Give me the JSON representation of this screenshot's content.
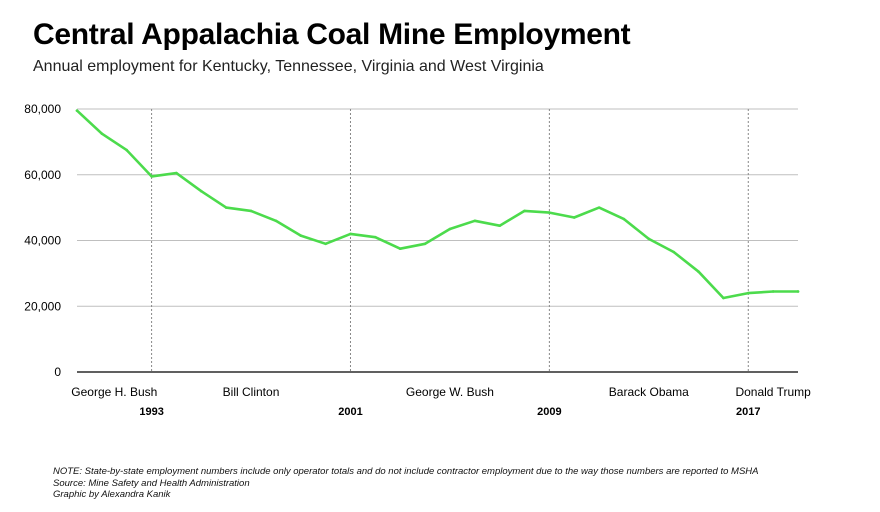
{
  "title": "Central Appalachia Coal Mine Employment",
  "subtitle": "Annual employment for Kentucky, Tennessee, Virginia and West Virginia",
  "colors": {
    "line": "#4cdb4c",
    "grid": "#bfbfbf",
    "axis": "#000000",
    "text": "#000000"
  },
  "chart_data": {
    "type": "line",
    "title": "Central Appalachia Coal Mine Employment",
    "subtitle": "Annual employment for Kentucky, Tennessee, Virginia and West Virginia",
    "xlim": [
      1990,
      2019
    ],
    "ylim": [
      0,
      80000
    ],
    "yticks": [
      0,
      20000,
      40000,
      60000,
      80000
    ],
    "ytick_labels": [
      "0",
      "20,000",
      "40,000",
      "60,000",
      "80,000"
    ],
    "grid": true,
    "series": [
      {
        "x": [
          1990,
          1991,
          1992,
          1993,
          1994,
          1995,
          1996,
          1997,
          1998,
          1999,
          2000,
          2001,
          2002,
          2003,
          2004,
          2005,
          2006,
          2007,
          2008,
          2009,
          2010,
          2011,
          2012,
          2013,
          2014,
          2015,
          2016,
          2017,
          2018,
          2019
        ],
        "y": [
          79500,
          72500,
          67500,
          59500,
          60500,
          55000,
          50000,
          49000,
          46000,
          41500,
          39000,
          42000,
          41000,
          37500,
          39000,
          43500,
          46000,
          44500,
          49000,
          48500,
          47000,
          50000,
          46500,
          40500,
          36500,
          30500,
          22500,
          24000,
          24500,
          24500
        ]
      }
    ],
    "presidencies": [
      {
        "name": "George H. Bush",
        "start": 1990,
        "end": 1993
      },
      {
        "name": "Bill Clinton",
        "start": 1993,
        "end": 2001
      },
      {
        "name": "George W. Bush",
        "start": 2001,
        "end": 2009
      },
      {
        "name": "Barack Obama",
        "start": 2009,
        "end": 2017
      },
      {
        "name": "Donald Trump",
        "start": 2017,
        "end": 2019
      }
    ],
    "term_boundaries": [
      1993,
      2001,
      2009,
      2017
    ]
  },
  "notes": {
    "note": "NOTE: State-by-state employment numbers include only operator totals and do not include contractor employment due to the way those numbers are reported to MSHA",
    "source": "Source: Mine Safety and Health Administration",
    "credit": "Graphic by Alexandra Kanik"
  }
}
